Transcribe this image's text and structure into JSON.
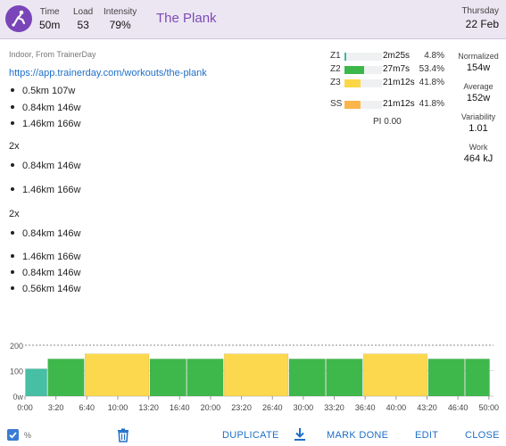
{
  "header": {
    "stats": [
      {
        "label": "Time",
        "value": "50m"
      },
      {
        "label": "Load",
        "value": "53"
      },
      {
        "label": "Intensity",
        "value": "79%"
      }
    ],
    "title": "The Plank",
    "day": "Thursday",
    "date": "22 Feb"
  },
  "workout": {
    "subtitle": "Indoor, From TrainerDay",
    "link": "https://app.trainerday.com/workouts/the-plank",
    "steps": [
      {
        "text": "0.5km 107w"
      },
      {
        "text": "0.84km 146w"
      },
      {
        "text": "1.46km 166w"
      },
      {
        "repeat": "2x"
      },
      {
        "text": "0.84km 146w"
      },
      {
        "text": "1.46km 166w"
      },
      {
        "repeat": "2x"
      },
      {
        "text": "0.84km 146w"
      },
      {
        "text": "1.46km 166w"
      },
      {
        "text": "0.84km 146w"
      },
      {
        "text": "0.56km 146w"
      }
    ]
  },
  "zones": [
    {
      "name": "Z1",
      "time": "2m25s",
      "pct": "4.8%",
      "fraction": 0.048,
      "color": "#40b8a0"
    },
    {
      "name": "Z2",
      "time": "27m7s",
      "pct": "53.4%",
      "fraction": 0.534,
      "color": "#3cb84a"
    },
    {
      "name": "Z3",
      "time": "21m12s",
      "pct": "41.8%",
      "fraction": 0.418,
      "color": "#fbd748"
    },
    {
      "name": "SS",
      "time": "21m12s",
      "pct": "41.8%",
      "fraction": 0.418,
      "color": "#fbb54a"
    }
  ],
  "pi": "PI 0.00",
  "metrics": [
    {
      "label": "Normalized",
      "value": "154w"
    },
    {
      "label": "Average",
      "value": "152w"
    },
    {
      "label": "Variability",
      "value": "1.01"
    },
    {
      "label": "Work",
      "value": "464 kJ"
    }
  ],
  "chart_data": {
    "type": "bar",
    "y_ticks": [
      "200",
      "100",
      "0w"
    ],
    "ylim": [
      0,
      200
    ],
    "x_ticks": [
      "0:00",
      "3:20",
      "6:40",
      "10:00",
      "13:20",
      "16:40",
      "20:00",
      "23:20",
      "26:40",
      "30:00",
      "33:20",
      "36:40",
      "40:00",
      "43:20",
      "46:40",
      "50:00"
    ],
    "total_minutes": 50.5,
    "segments": [
      {
        "duration_min": 2.42,
        "watts": 107,
        "zone": "Z1"
      },
      {
        "duration_min": 4.0,
        "watts": 146,
        "zone": "Z2"
      },
      {
        "duration_min": 7.0,
        "watts": 166,
        "zone": "Z3"
      },
      {
        "duration_min": 4.0,
        "watts": 146,
        "zone": "Z2"
      },
      {
        "duration_min": 4.0,
        "watts": 146,
        "zone": "Z2"
      },
      {
        "duration_min": 7.0,
        "watts": 166,
        "zone": "Z3"
      },
      {
        "duration_min": 4.0,
        "watts": 146,
        "zone": "Z2"
      },
      {
        "duration_min": 4.0,
        "watts": 146,
        "zone": "Z2"
      },
      {
        "duration_min": 7.0,
        "watts": 166,
        "zone": "Z3"
      },
      {
        "duration_min": 4.0,
        "watts": 146,
        "zone": "Z2"
      },
      {
        "duration_min": 2.7,
        "watts": 146,
        "zone": "Z2"
      }
    ],
    "colors": {
      "Z1": "#46bfa5",
      "Z2": "#3fb84b",
      "Z3": "#fcd84e"
    }
  },
  "toolbar": {
    "percent_label": "%",
    "duplicate": "DUPLICATE",
    "mark_done": "MARK DONE",
    "edit": "EDIT",
    "close": "CLOSE"
  }
}
